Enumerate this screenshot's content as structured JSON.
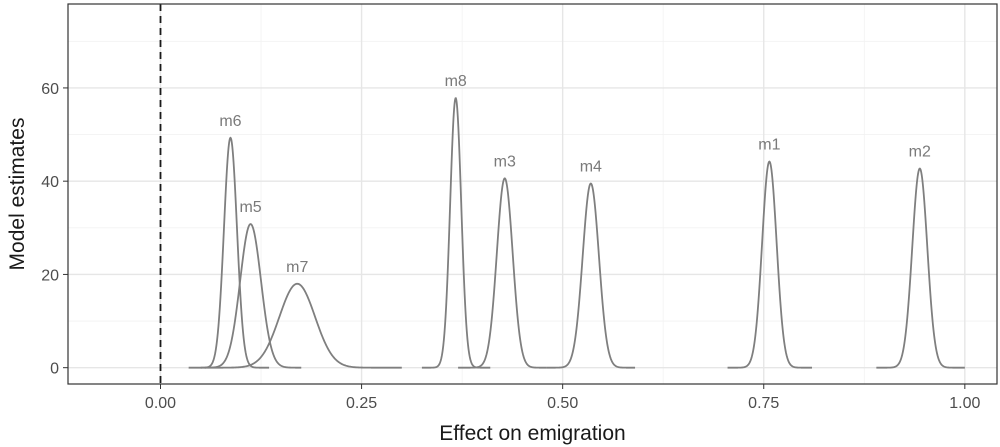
{
  "chart_data": {
    "type": "density",
    "xlabel": "Effect on emigration",
    "ylabel": "Model estimates",
    "xlim": [
      -0.115,
      1.04
    ],
    "ylim": [
      -3.5,
      78
    ],
    "x_ticks": [
      0.0,
      0.25,
      0.5,
      0.75,
      1.0
    ],
    "x_tick_labels": [
      "0.00",
      "0.25",
      "0.50",
      "0.75",
      "1.00"
    ],
    "y_ticks": [
      0,
      20,
      40,
      60
    ],
    "y_tick_labels": [
      "0",
      "20",
      "40",
      "60"
    ],
    "grid": true,
    "reference_line": {
      "x": 0.0,
      "style": "dashed"
    },
    "series": [
      {
        "name": "m1",
        "mean": 0.757,
        "peak": 44.2,
        "x_range": [
          0.705,
          0.81
        ]
      },
      {
        "name": "m2",
        "mean": 0.944,
        "peak": 42.7,
        "x_range": [
          0.89,
          1.0
        ]
      },
      {
        "name": "m3",
        "mean": 0.428,
        "peak": 40.6,
        "x_range": [
          0.37,
          0.48
        ]
      },
      {
        "name": "m4",
        "mean": 0.535,
        "peak": 39.5,
        "x_range": [
          0.48,
          0.59
        ]
      },
      {
        "name": "m5",
        "mean": 0.112,
        "peak": 30.8,
        "x_range": [
          0.05,
          0.175
        ]
      },
      {
        "name": "m6",
        "mean": 0.087,
        "peak": 49.3,
        "x_range": [
          0.035,
          0.135
        ]
      },
      {
        "name": "m7",
        "mean": 0.17,
        "peak": 18.0,
        "x_range": [
          0.055,
          0.3
        ]
      },
      {
        "name": "m8",
        "mean": 0.367,
        "peak": 57.8,
        "x_range": [
          0.325,
          0.41
        ]
      }
    ]
  }
}
